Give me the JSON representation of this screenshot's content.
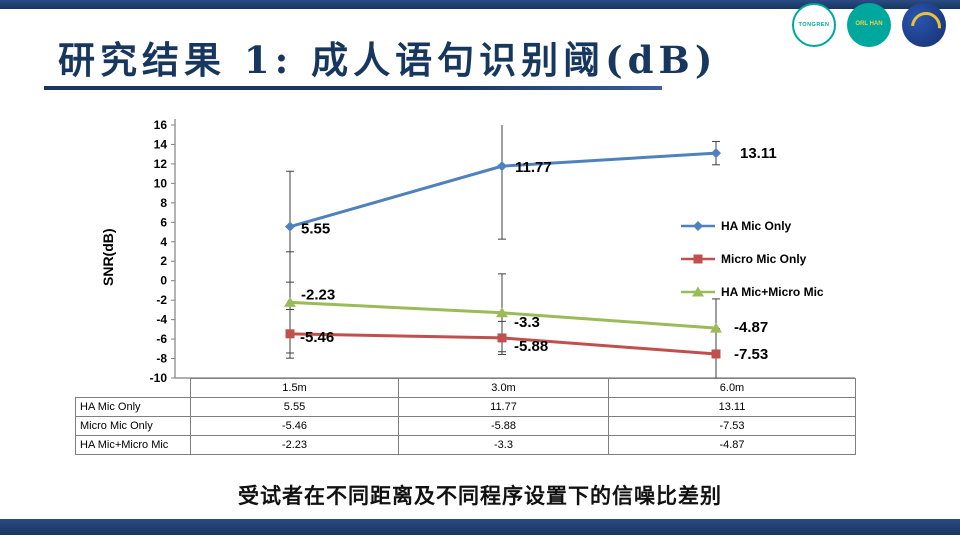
{
  "slide": {
    "title": "研究结果 1: 成人语句识别阈(dB)",
    "caption": "受试者在不同距离及不同程序设置下的信噪比差别"
  },
  "logos": [
    {
      "name": "tongren-hospital",
      "text": "TONGREN"
    },
    {
      "name": "orl-han",
      "text": "ORL HAN"
    },
    {
      "name": "anniversary-emblem",
      "text": ""
    }
  ],
  "chart_data": {
    "type": "line",
    "categories": [
      "1.5m",
      "3.0m",
      "6.0m"
    ],
    "title": "",
    "xlabel": "",
    "ylabel": "SNR(dB)",
    "ylim": [
      -10,
      16
    ],
    "ytick_step": 2,
    "grid": false,
    "legend_position": "right-inside",
    "error_bars": true,
    "series": [
      {
        "name": "HA Mic Only",
        "marker": "diamond",
        "color": "#4F81BD",
        "values": [
          5.55,
          11.77,
          13.11
        ],
        "labels": [
          "5.55",
          "11.77",
          "13.11"
        ],
        "errors": [
          5.7,
          7.5,
          1.2
        ]
      },
      {
        "name": "Micro Mic Only",
        "marker": "square",
        "color": "#C0504D",
        "values": [
          -5.46,
          -5.88,
          -7.53
        ],
        "labels": [
          "-5.46",
          "-5.88",
          "-7.53"
        ],
        "errors": [
          2.5,
          1.7,
          2.6
        ]
      },
      {
        "name": "HA Mic+Micro Mic",
        "marker": "triangle",
        "color": "#9BBB59",
        "values": [
          -2.23,
          -3.3,
          -4.87
        ],
        "labels": [
          "-2.23",
          "-3.3",
          "-4.87"
        ],
        "errors": [
          5.2,
          4.0,
          3.0
        ]
      }
    ]
  },
  "table": {
    "col_headers": [
      "",
      "1.5m",
      "3.0m",
      "6.0m"
    ],
    "rows": [
      {
        "label": "HA Mic Only",
        "values": [
          "5.55",
          "11.77",
          "13.11"
        ]
      },
      {
        "label": "Micro Mic Only",
        "values": [
          "-5.46",
          "-5.88",
          "-7.53"
        ]
      },
      {
        "label": "HA Mic+Micro Mic",
        "values": [
          "-2.23",
          "-3.3",
          "-4.87"
        ]
      }
    ]
  },
  "colors": {
    "accent_navy": "#17375E",
    "series_blue": "#4F81BD",
    "series_red": "#C0504D",
    "series_green": "#9BBB59",
    "logo_teal": "#00A79D"
  }
}
